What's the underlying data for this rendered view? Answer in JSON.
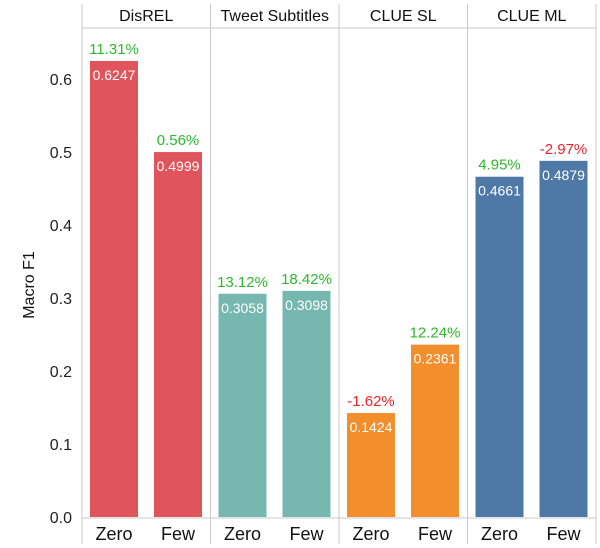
{
  "chart_data": {
    "type": "bar",
    "ylabel": "Macro F1",
    "ylim": [
      0,
      0.65
    ],
    "yticks": [
      "0.0",
      "0.1",
      "0.2",
      "0.3",
      "0.4",
      "0.5",
      "0.6"
    ],
    "grid": false,
    "colors": {
      "positive": "#2db82d",
      "negative": "#e8232a"
    },
    "panels": [
      {
        "title": "DisREL",
        "color": "#e0555c",
        "bars": [
          {
            "category": "Zero",
            "value": 0.6247,
            "value_label": "0.6247",
            "change": "11.31%",
            "sign": "positive"
          },
          {
            "category": "Few",
            "value": 0.4999,
            "value_label": "0.4999",
            "change": "0.56%",
            "sign": "positive"
          }
        ]
      },
      {
        "title": "Tweet Subtitles",
        "color": "#76b7b0",
        "bars": [
          {
            "category": "Zero",
            "value": 0.3058,
            "value_label": "0.3058",
            "change": "13.12%",
            "sign": "positive"
          },
          {
            "category": "Few",
            "value": 0.3098,
            "value_label": "0.3098",
            "change": "18.42%",
            "sign": "positive"
          }
        ]
      },
      {
        "title": "CLUE SL",
        "color": "#f28e2b",
        "bars": [
          {
            "category": "Zero",
            "value": 0.1424,
            "value_label": "0.1424",
            "change": "-1.62%",
            "sign": "negative"
          },
          {
            "category": "Few",
            "value": 0.2361,
            "value_label": "0.2361",
            "change": "12.24%",
            "sign": "positive"
          }
        ]
      },
      {
        "title": "CLUE ML",
        "color": "#4e79a7",
        "bars": [
          {
            "category": "Zero",
            "value": 0.4661,
            "value_label": "0.4661",
            "change": "4.95%",
            "sign": "positive"
          },
          {
            "category": "Few",
            "value": 0.4879,
            "value_label": "0.4879",
            "change": "-2.97%",
            "sign": "negative"
          }
        ]
      }
    ]
  }
}
